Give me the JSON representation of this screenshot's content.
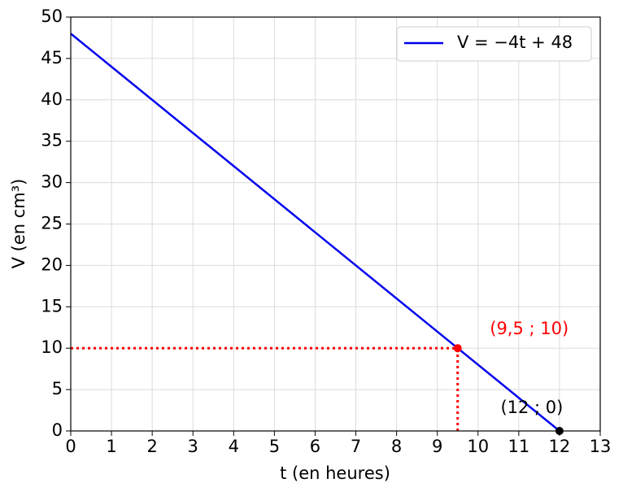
{
  "chart_data": {
    "type": "line",
    "xlabel": "t (en heures)",
    "ylabel": "V (en cm³)",
    "x": [
      0,
      12
    ],
    "series": [
      {
        "name": "V = −4t + 48",
        "color": "#0000ee",
        "values": [
          48,
          0
        ]
      }
    ],
    "points": [
      {
        "x": 9.5,
        "y": 10,
        "color": "#ff0000",
        "label": "(9,5 ; 10)"
      },
      {
        "x": 12,
        "y": 0,
        "color": "#000000",
        "label": "(12 ; 0)"
      }
    ],
    "xlim": [
      0,
      13
    ],
    "ylim": [
      0,
      50
    ],
    "xticks": [
      0,
      1,
      2,
      3,
      4,
      5,
      6,
      7,
      8,
      9,
      10,
      11,
      12,
      13
    ],
    "yticks": [
      0,
      5,
      10,
      15,
      20,
      25,
      30,
      35,
      40,
      45,
      50
    ],
    "grid": true,
    "legend": "upper right"
  }
}
